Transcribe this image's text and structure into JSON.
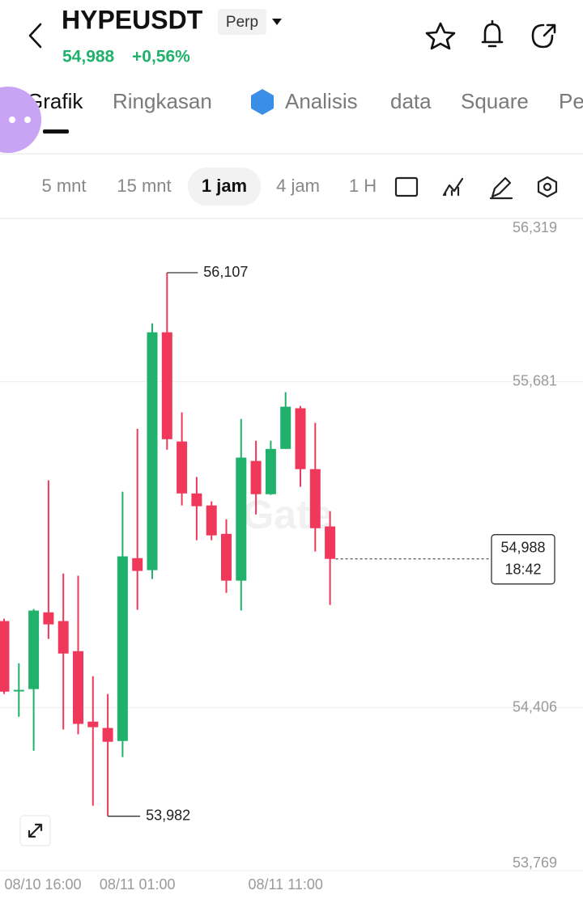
{
  "header": {
    "symbol": "HYPEUSDT",
    "badge": "Perp",
    "price": "54,988",
    "change": "+0,56%"
  },
  "tabs": [
    "Grafik",
    "Ringkasan",
    "Analisis",
    "data",
    "Square",
    "Pe"
  ],
  "timeframes": [
    "5 mnt",
    "15 mnt",
    "1 jam",
    "4 jam",
    "1 H"
  ],
  "chart_data": {
    "type": "candlestick",
    "watermark": "Gate",
    "categories": [
      "08/10 16:00",
      null,
      null,
      null,
      null,
      null,
      null,
      null,
      null,
      "08/11 01:00",
      null,
      null,
      null,
      null,
      null,
      null,
      null,
      null,
      null,
      "08/11 11:00",
      null,
      null,
      null
    ],
    "open": [
      54.745,
      54.476,
      54.479,
      54.779,
      54.745,
      54.627,
      54.352,
      54.327,
      54.276,
      54.991,
      54.944,
      55.874,
      55.447,
      55.244,
      55.197,
      55.086,
      54.903,
      55.371,
      55.241,
      55.418,
      55.577,
      55.339,
      55.115
    ],
    "high": [
      54.754,
      54.58,
      54.792,
      55.295,
      54.931,
      54.922,
      54.529,
      54.46,
      55.251,
      55.497,
      55.909,
      56.107,
      55.561,
      55.308,
      55.213,
      55.143,
      55.535,
      55.45,
      55.45,
      55.64,
      55.586,
      55.52,
      55.175
    ],
    "low": [
      54.46,
      54.371,
      54.238,
      54.675,
      54.321,
      54.302,
      54.023,
      53.982,
      54.213,
      54.789,
      54.909,
      55.415,
      55.197,
      55.061,
      55.061,
      54.855,
      54.786,
      55.162,
      55.238,
      55.418,
      55.27,
      55.017,
      54.808
    ],
    "close": [
      54.469,
      54.476,
      54.786,
      54.732,
      54.618,
      54.343,
      54.33,
      54.273,
      54.998,
      54.941,
      55.874,
      55.456,
      55.244,
      55.194,
      55.08,
      54.903,
      55.384,
      55.241,
      55.418,
      55.583,
      55.339,
      55.108,
      54.988
    ],
    "up_color": "#20b26c",
    "down_color": "#f0395a",
    "ylim": [
      53.769,
      56.319
    ],
    "yticks": [
      {
        "value": 53.769,
        "label": "53,769"
      },
      {
        "value": 54.406,
        "label": "54,406"
      },
      {
        "value": 55.681,
        "label": "55,681"
      },
      {
        "value": 56.319,
        "label": "56,319"
      }
    ],
    "grid": true,
    "high_label": {
      "value": 56.107,
      "label": "56,107"
    },
    "low_label": {
      "value": 53.982,
      "label": "53,982"
    },
    "last_price": {
      "value": 54.988,
      "label": "54,988"
    },
    "countdown": "18:42"
  }
}
